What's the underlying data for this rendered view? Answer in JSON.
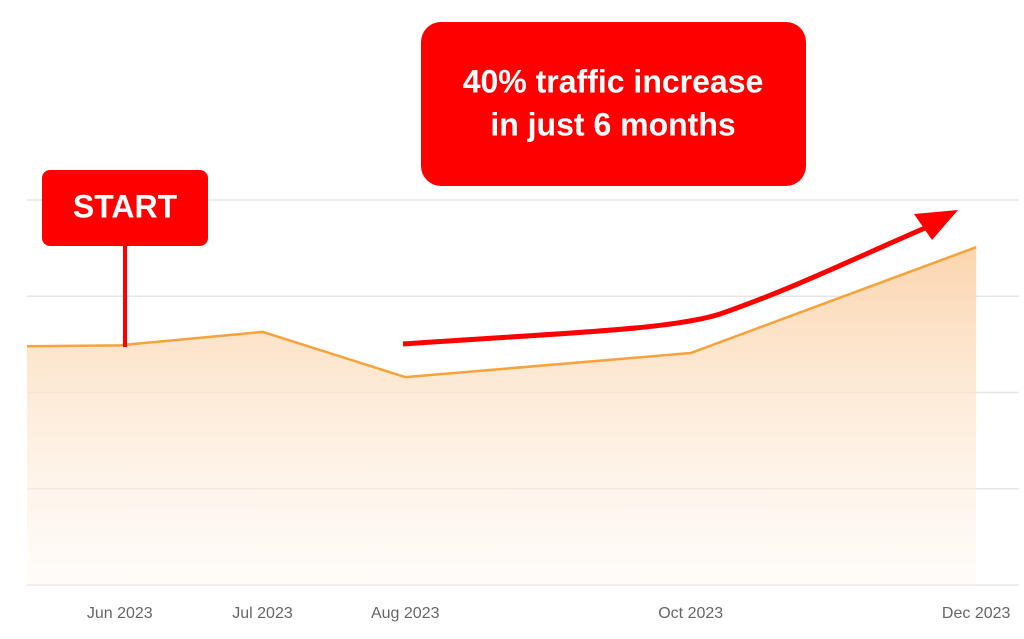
{
  "chart_data": {
    "type": "area",
    "x": [
      -0.65,
      0,
      1,
      2,
      4,
      6
    ],
    "series": [
      {
        "color": "#f7a23a",
        "values": [
          2.48,
          2.49,
          2.63,
          2.16,
          2.41,
          3.51
        ]
      }
    ],
    "xlim": [
      -0.65,
      6.3
    ],
    "xticks": [
      {
        "value": 0,
        "label": "Jun 2023"
      },
      {
        "value": 1,
        "label": "Jul 2023"
      },
      {
        "value": 2,
        "label": "Aug 2023"
      },
      {
        "value": 4,
        "label": "Oct 2023"
      },
      {
        "value": 6,
        "label": "Dec 2023"
      }
    ],
    "ylim": [
      0,
      4
    ],
    "gridlines": [
      0,
      1,
      2,
      3,
      4
    ],
    "grid": true,
    "annotations": {
      "start": "START",
      "callout": [
        "40% traffic increase",
        "in just 6 months"
      ]
    }
  }
}
